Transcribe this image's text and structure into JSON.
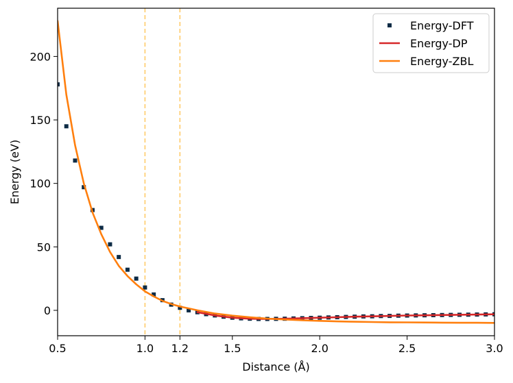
{
  "chart_data": {
    "type": "line",
    "title": "",
    "xlabel": "Distance (Å)",
    "ylabel": "Energy (eV)",
    "xlim": [
      0.5,
      3.0
    ],
    "ylim": [
      -20,
      238
    ],
    "x_ticks": [
      0.5,
      1.0,
      1.2,
      1.5,
      2.0,
      2.5,
      3.0
    ],
    "x_tick_labels": [
      "0.5",
      "1.0",
      "1.2",
      "1.5",
      "2.0",
      "2.5",
      "3.0"
    ],
    "y_ticks": [
      0,
      50,
      100,
      150,
      200
    ],
    "y_tick_labels": [
      "0",
      "50",
      "100",
      "150",
      "200"
    ],
    "vlines": [
      1.0,
      1.2
    ],
    "legend_position": "top-right",
    "series": [
      {
        "name": "Energy-DFT",
        "kind": "scatter",
        "marker": "square",
        "color": "#0d2b45",
        "x": [
          0.5,
          0.55,
          0.6,
          0.65,
          0.7,
          0.75,
          0.8,
          0.85,
          0.9,
          0.95,
          1.0,
          1.05,
          1.1,
          1.15,
          1.2,
          1.25,
          1.3,
          1.35,
          1.4,
          1.45,
          1.5,
          1.55,
          1.6,
          1.65,
          1.7,
          1.75,
          1.8,
          1.85,
          1.9,
          1.95,
          2.0,
          2.05,
          2.1,
          2.15,
          2.2,
          2.25,
          2.3,
          2.35,
          2.4,
          2.45,
          2.5,
          2.55,
          2.6,
          2.65,
          2.7,
          2.75,
          2.8,
          2.85,
          2.9,
          2.95,
          3.0
        ],
        "y": [
          178,
          145,
          118,
          97,
          79,
          65,
          52,
          42,
          32,
          25,
          18,
          12.5,
          8,
          4.5,
          2,
          0,
          -1.5,
          -3,
          -4,
          -5,
          -5.8,
          -6.3,
          -6.6,
          -6.8,
          -6.8,
          -6.7,
          -6.6,
          -6.4,
          -6.2,
          -6.0,
          -5.8,
          -5.6,
          -5.4,
          -5.2,
          -5.0,
          -4.8,
          -4.7,
          -4.5,
          -4.4,
          -4.2,
          -4.1,
          -4.0,
          -3.9,
          -3.8,
          -3.7,
          -3.6,
          -3.5,
          -3.4,
          -3.3,
          -3.2,
          -3.1
        ]
      },
      {
        "name": "Energy-DP",
        "kind": "line",
        "color": "#d62728",
        "x": [
          1.3,
          1.4,
          1.5,
          1.6,
          1.7,
          1.8,
          1.9,
          2.0,
          2.1,
          2.2,
          2.3,
          2.4,
          2.5,
          2.6,
          2.7,
          2.8,
          2.9,
          3.0
        ],
        "y": [
          -1.5,
          -4,
          -5.8,
          -6.6,
          -6.8,
          -6.6,
          -6.2,
          -5.8,
          -5.4,
          -5.0,
          -4.7,
          -4.4,
          -4.1,
          -3.9,
          -3.7,
          -3.5,
          -3.3,
          -3.1
        ]
      },
      {
        "name": "Energy-ZBL",
        "kind": "line",
        "color": "#ff7f0e",
        "x": [
          0.5,
          0.55,
          0.6,
          0.65,
          0.7,
          0.75,
          0.8,
          0.85,
          0.9,
          0.95,
          1.0,
          1.05,
          1.1,
          1.15,
          1.2,
          1.3,
          1.4,
          1.5,
          1.6,
          1.7,
          1.8,
          1.9,
          2.0,
          2.1,
          2.2,
          2.3,
          2.4,
          2.5,
          2.6,
          2.7,
          2.8,
          2.9,
          3.0
        ],
        "y": [
          228,
          170,
          130,
          100,
          77,
          60,
          46,
          35,
          27,
          20.5,
          15,
          11,
          7.5,
          5,
          3,
          0,
          -2.5,
          -4.2,
          -5.5,
          -6.5,
          -7.2,
          -7.8,
          -8.3,
          -8.7,
          -9.0,
          -9.2,
          -9.4,
          -9.5,
          -9.6,
          -9.7,
          -9.8,
          -9.8,
          -9.9
        ]
      }
    ]
  }
}
